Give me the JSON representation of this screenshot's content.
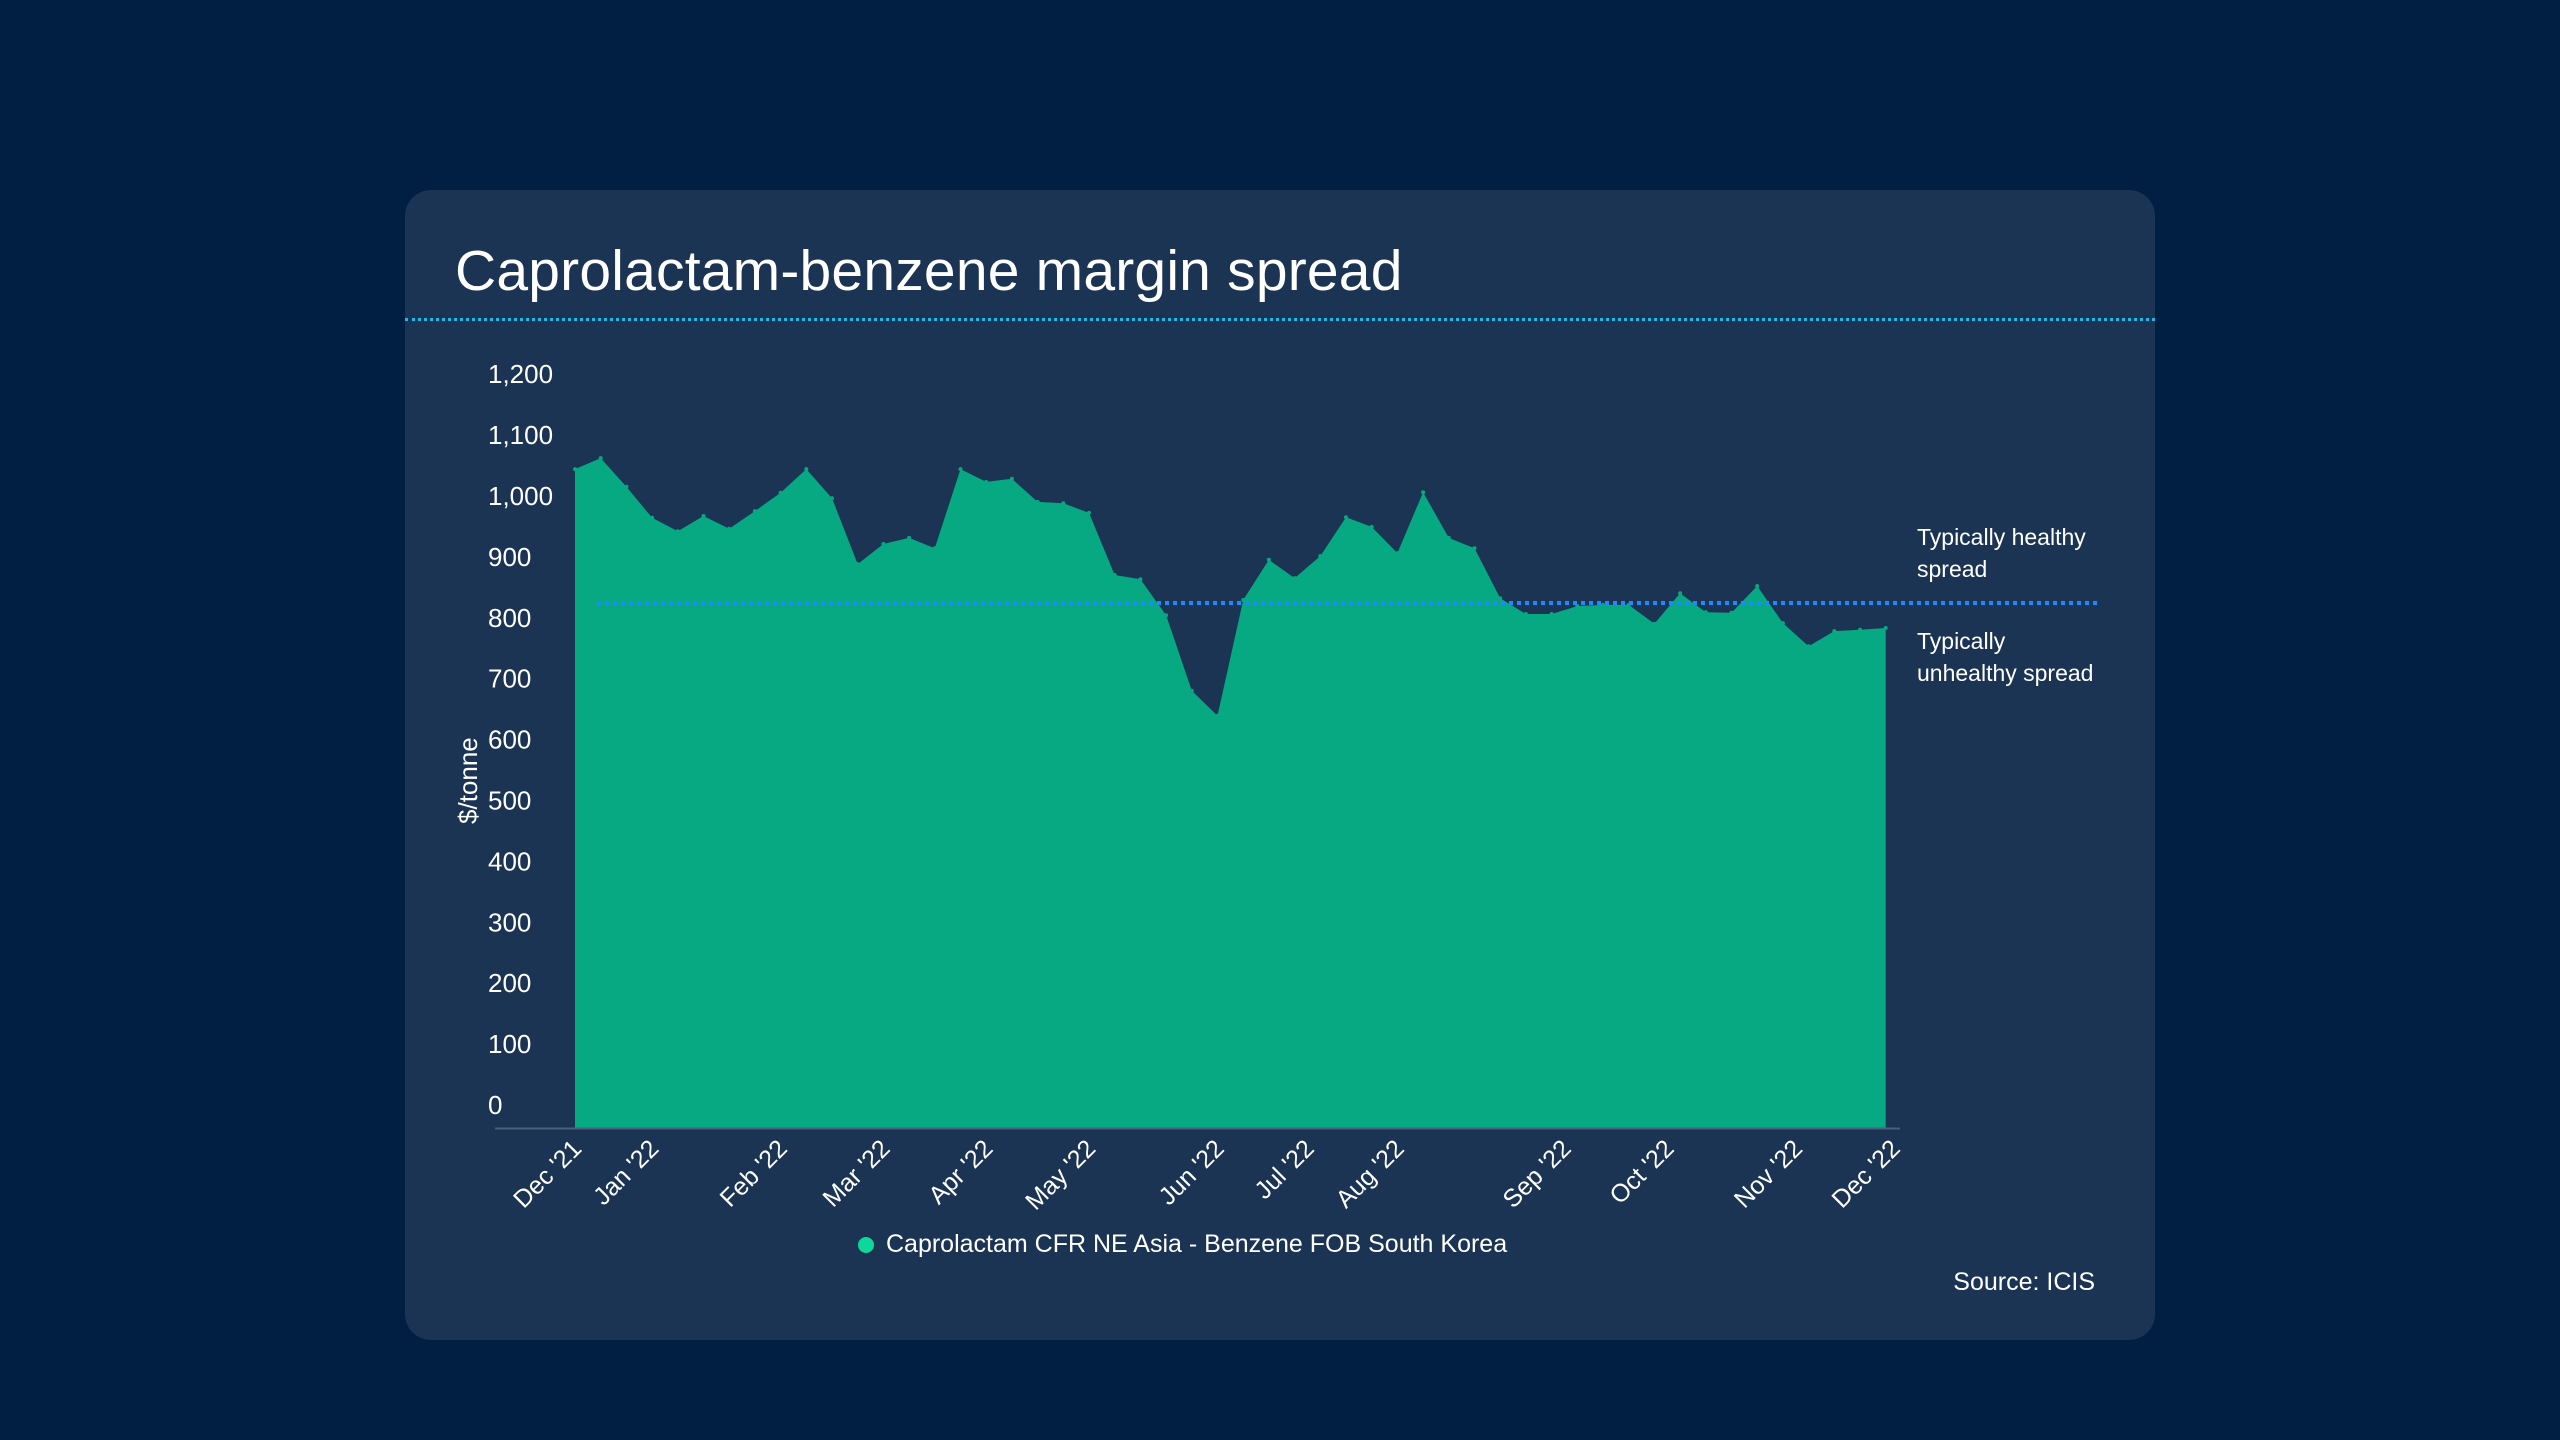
{
  "colors": {
    "page_background": "#001f42",
    "card_background": "#1b3453",
    "area_fill": "#07a982",
    "legend_dot": "#0ed79a",
    "threshold_line": "#1a8cff",
    "title_divider": "#21b8e6",
    "axis_line": "#4a5f7a"
  },
  "chart_data": {
    "type": "area",
    "title": "Caprolactam-benzene margin spread",
    "xlabel": "",
    "ylabel": "$/tonne",
    "ylim": [
      0,
      1200
    ],
    "yticks": [
      0,
      100,
      200,
      300,
      400,
      500,
      600,
      700,
      800,
      900,
      1000,
      1100,
      1200
    ],
    "ytick_labels": [
      "0",
      "100",
      "200",
      "300",
      "400",
      "500",
      "600",
      "700",
      "800",
      "900",
      "1,000",
      "1,100",
      "1,200"
    ],
    "xtick_labels": [
      {
        "label": "Dec '21",
        "index": 0
      },
      {
        "label": "Jan '22",
        "index": 3
      },
      {
        "label": "Feb '22",
        "index": 8
      },
      {
        "label": "Mar '22",
        "index": 12
      },
      {
        "label": "Apr '22",
        "index": 16
      },
      {
        "label": "May '22",
        "index": 20
      },
      {
        "label": "Jun '22",
        "index": 25
      },
      {
        "label": "Jul '22",
        "index": 28.5
      },
      {
        "label": "Aug '22",
        "index": 32
      },
      {
        "label": "Sep '22",
        "index": 38.5
      },
      {
        "label": "Oct '22",
        "index": 42.5
      },
      {
        "label": "Nov '22",
        "index": 47.5
      },
      {
        "label": "Dec '22",
        "index": 51.3
      }
    ],
    "grid": false,
    "legend_position": "bottom-center",
    "series": [
      {
        "name": "Caprolactam CFR NE Asia - Benzene FOB South Korea",
        "values": [
          1082,
          1100,
          1053,
          1002,
          980,
          1005,
          984,
          1013,
          1043,
          1082,
          1034,
          926,
          959,
          969,
          952,
          1082,
          1061,
          1066,
          1028,
          1026,
          1010,
          908,
          901,
          842,
          718,
          677,
          867,
          933,
          903,
          939,
          1003,
          987,
          944,
          1044,
          969,
          952,
          870,
          844,
          844,
          857,
          859,
          859,
          828,
          878,
          847,
          846,
          890,
          829,
          791,
          816,
          818,
          821
        ]
      }
    ],
    "reference_line": {
      "value": 862,
      "style": "dotted"
    },
    "annotations": [
      {
        "text_lines": [
          "Typically healthy",
          "spread"
        ],
        "position": "right, above reference line"
      },
      {
        "text_lines": [
          "Typically",
          "unhealthy spread"
        ],
        "position": "right, below reference line"
      }
    ],
    "source": "Source: ICIS"
  }
}
